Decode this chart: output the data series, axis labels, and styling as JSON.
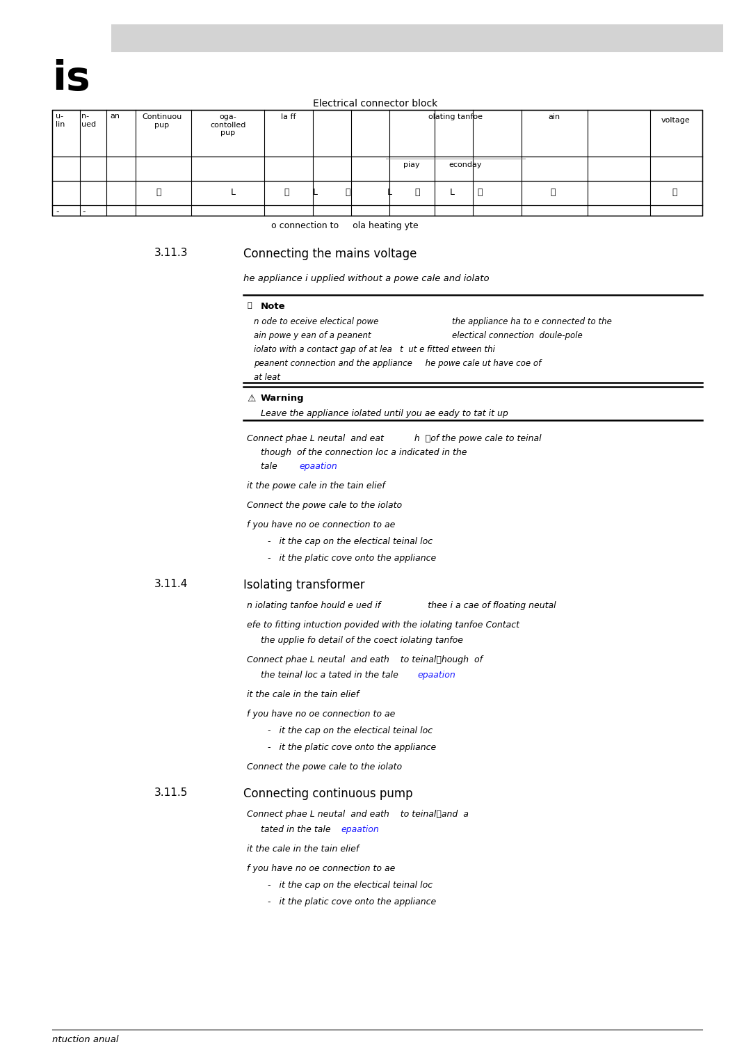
{
  "bg_color": "#ffffff",
  "header_bar_color": "#d3d3d3",
  "page_title": "is",
  "table_title": "Electrical connector block",
  "blue_color": "#1a1aff",
  "black_color": "#000000",
  "footer_text": "ntuction anual",
  "fig_w": 10.8,
  "fig_h": 15.28,
  "dpi": 100
}
